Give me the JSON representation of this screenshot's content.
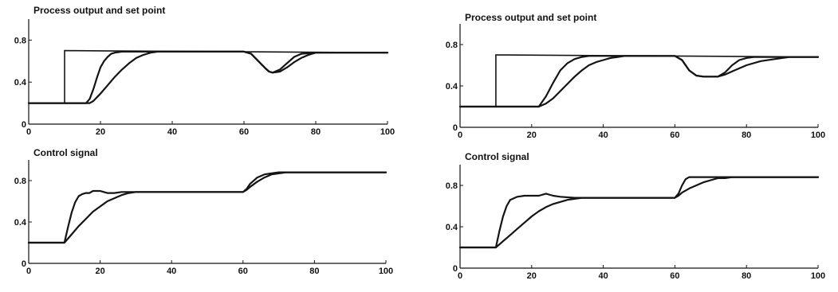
{
  "chart_data": [
    {
      "type": "line",
      "title": "Process output and set point",
      "xlim": [
        0,
        100
      ],
      "ylim": [
        0,
        1.0
      ],
      "xticks": [
        0,
        20,
        40,
        60,
        80,
        100
      ],
      "yticks": [
        0,
        0.4,
        0.8
      ],
      "xtick_labels": [
        "0",
        "20",
        "40",
        "60",
        "80",
        "100"
      ],
      "ytick_labels": [
        "0",
        "0.4",
        "0.8"
      ],
      "series": [
        {
          "role": "setpoint",
          "x": [
            0,
            10,
            10,
            100
          ],
          "y": [
            0.2,
            0.2,
            0.7,
            0.68
          ]
        },
        {
          "x": [
            0,
            16,
            17,
            18,
            19,
            20,
            21,
            22,
            23,
            24,
            26,
            28,
            32,
            60,
            62,
            64,
            66,
            67,
            68,
            70,
            72,
            74,
            76,
            80,
            100
          ],
          "y": [
            0.2,
            0.2,
            0.24,
            0.33,
            0.44,
            0.54,
            0.6,
            0.64,
            0.67,
            0.68,
            0.69,
            0.69,
            0.69,
            0.69,
            0.67,
            0.6,
            0.53,
            0.5,
            0.49,
            0.52,
            0.58,
            0.64,
            0.67,
            0.68,
            0.68
          ]
        },
        {
          "x": [
            0,
            17,
            18,
            20,
            22,
            24,
            26,
            28,
            30,
            32,
            34,
            36,
            60,
            62,
            64,
            66,
            67,
            68,
            70,
            72,
            74,
            76,
            78,
            80,
            82,
            100
          ],
          "y": [
            0.2,
            0.2,
            0.22,
            0.29,
            0.37,
            0.45,
            0.52,
            0.58,
            0.63,
            0.66,
            0.68,
            0.69,
            0.69,
            0.67,
            0.6,
            0.53,
            0.5,
            0.49,
            0.5,
            0.54,
            0.59,
            0.63,
            0.66,
            0.68,
            0.68,
            0.68
          ]
        }
      ]
    },
    {
      "type": "line",
      "title": "Process output and set point",
      "xlim": [
        0,
        100
      ],
      "ylim": [
        0,
        1.0
      ],
      "xticks": [
        0,
        20,
        40,
        60,
        80,
        100
      ],
      "yticks": [
        0,
        0.4,
        0.8
      ],
      "xtick_labels": [
        "0",
        "20",
        "40",
        "60",
        "80",
        "100"
      ],
      "ytick_labels": [
        "0",
        "0.4",
        "0.8"
      ],
      "series": [
        {
          "role": "setpoint",
          "x": [
            0,
            10,
            10,
            100
          ],
          "y": [
            0.2,
            0.2,
            0.7,
            0.68
          ]
        },
        {
          "x": [
            0,
            22,
            24,
            26,
            28,
            30,
            32,
            34,
            36,
            38,
            40,
            60,
            62,
            64,
            66,
            68,
            70,
            72,
            74,
            76,
            78,
            80,
            82,
            100
          ],
          "y": [
            0.2,
            0.2,
            0.3,
            0.43,
            0.55,
            0.62,
            0.66,
            0.68,
            0.69,
            0.69,
            0.69,
            0.69,
            0.65,
            0.55,
            0.5,
            0.49,
            0.49,
            0.49,
            0.53,
            0.6,
            0.65,
            0.67,
            0.68,
            0.68
          ]
        },
        {
          "x": [
            0,
            22,
            24,
            26,
            28,
            30,
            32,
            34,
            36,
            38,
            40,
            42,
            44,
            46,
            48,
            60,
            62,
            64,
            66,
            68,
            70,
            72,
            74,
            76,
            78,
            80,
            84,
            88,
            92,
            100
          ],
          "y": [
            0.2,
            0.2,
            0.23,
            0.28,
            0.35,
            0.42,
            0.49,
            0.55,
            0.6,
            0.63,
            0.65,
            0.67,
            0.68,
            0.69,
            0.69,
            0.69,
            0.65,
            0.55,
            0.5,
            0.49,
            0.49,
            0.49,
            0.51,
            0.54,
            0.57,
            0.6,
            0.64,
            0.66,
            0.68,
            0.68
          ]
        }
      ]
    },
    {
      "type": "line",
      "title": "Control signal",
      "xlim": [
        0,
        100
      ],
      "ylim": [
        0,
        1.0
      ],
      "xticks": [
        0,
        20,
        40,
        60,
        80,
        100
      ],
      "yticks": [
        0,
        0.4,
        0.8
      ],
      "xtick_labels": [
        "0",
        "20",
        "40",
        "60",
        "80",
        "100"
      ],
      "ytick_labels": [
        "0",
        "0.4",
        "0.8"
      ],
      "series": [
        {
          "x": [
            0,
            10,
            11,
            12,
            13,
            14,
            15,
            16,
            17,
            18,
            19,
            20,
            21,
            22,
            24,
            26,
            60,
            61,
            62,
            64,
            66,
            68,
            70,
            72,
            74,
            100
          ],
          "y": [
            0.2,
            0.2,
            0.35,
            0.49,
            0.59,
            0.65,
            0.67,
            0.68,
            0.68,
            0.7,
            0.7,
            0.7,
            0.69,
            0.68,
            0.68,
            0.69,
            0.69,
            0.72,
            0.77,
            0.83,
            0.86,
            0.87,
            0.88,
            0.88,
            0.88,
            0.88
          ]
        },
        {
          "x": [
            0,
            10,
            12,
            14,
            16,
            18,
            20,
            22,
            24,
            26,
            28,
            30,
            32,
            60,
            61,
            62,
            64,
            66,
            68,
            70,
            72,
            74,
            76,
            100
          ],
          "y": [
            0.2,
            0.2,
            0.28,
            0.36,
            0.43,
            0.5,
            0.55,
            0.6,
            0.63,
            0.66,
            0.68,
            0.69,
            0.69,
            0.69,
            0.71,
            0.74,
            0.79,
            0.83,
            0.86,
            0.87,
            0.88,
            0.88,
            0.88,
            0.88
          ]
        }
      ]
    },
    {
      "type": "line",
      "title": "Control signal",
      "xlim": [
        0,
        100
      ],
      "ylim": [
        0,
        1.0
      ],
      "xticks": [
        0,
        20,
        40,
        60,
        80,
        100
      ],
      "yticks": [
        0,
        0.4,
        0.8
      ],
      "xtick_labels": [
        "0",
        "20",
        "40",
        "60",
        "80",
        "100"
      ],
      "ytick_labels": [
        "0",
        "0.4",
        "0.8"
      ],
      "series": [
        {
          "x": [
            0,
            10,
            11,
            12,
            13,
            14,
            16,
            18,
            20,
            22,
            24,
            26,
            28,
            32,
            60,
            61,
            62,
            63,
            64,
            66,
            68,
            70,
            100
          ],
          "y": [
            0.2,
            0.2,
            0.36,
            0.5,
            0.6,
            0.66,
            0.69,
            0.7,
            0.7,
            0.7,
            0.72,
            0.7,
            0.69,
            0.68,
            0.68,
            0.72,
            0.8,
            0.86,
            0.88,
            0.88,
            0.88,
            0.88,
            0.88
          ]
        },
        {
          "x": [
            0,
            10,
            12,
            14,
            16,
            18,
            20,
            22,
            24,
            26,
            28,
            30,
            32,
            34,
            36,
            60,
            61,
            62,
            64,
            66,
            68,
            70,
            72,
            74,
            76,
            78,
            80,
            100
          ],
          "y": [
            0.2,
            0.2,
            0.26,
            0.32,
            0.38,
            0.44,
            0.5,
            0.55,
            0.59,
            0.62,
            0.64,
            0.66,
            0.67,
            0.68,
            0.68,
            0.68,
            0.7,
            0.73,
            0.77,
            0.8,
            0.83,
            0.85,
            0.87,
            0.87,
            0.88,
            0.88,
            0.88,
            0.88
          ]
        }
      ]
    }
  ]
}
